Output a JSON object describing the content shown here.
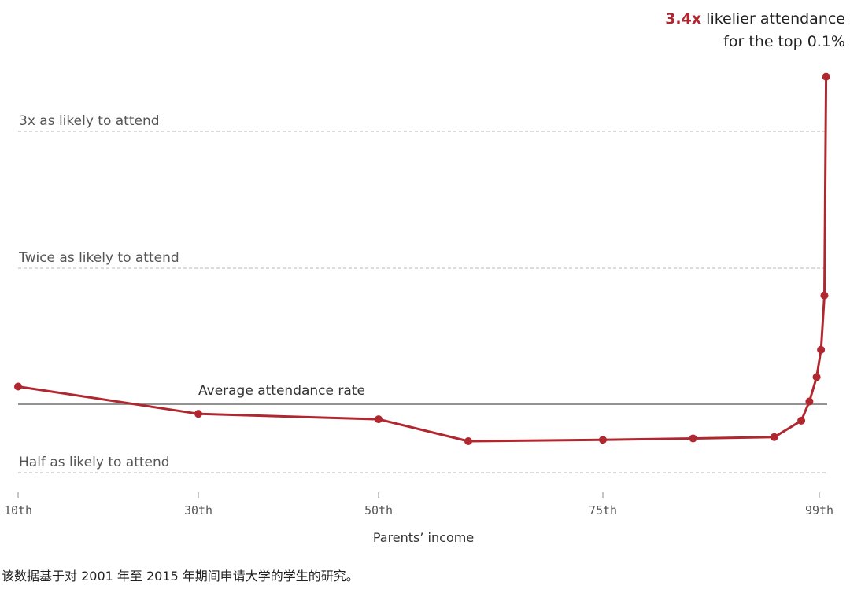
{
  "chart_data": {
    "type": "line",
    "xlabel": "Parents’ income",
    "x_ticks": [
      {
        "value": 10,
        "label": "10th"
      },
      {
        "value": 30,
        "label": "30th"
      },
      {
        "value": 50,
        "label": "50th"
      },
      {
        "value": 75,
        "label": "75th"
      },
      {
        "value": 99,
        "label": "99th"
      }
    ],
    "xlim": [
      10,
      100
    ],
    "ylim": [
      0.3,
      3.5
    ],
    "reference_lines": [
      {
        "value": 3.0,
        "label": "3x as likely to attend",
        "style": "dashed"
      },
      {
        "value": 2.0,
        "label": "Twice as likely to attend",
        "style": "dashed"
      },
      {
        "value": 0.5,
        "label": "Half as likely to attend",
        "style": "dashed"
      }
    ],
    "average_line": {
      "value": 1.0,
      "label": "Average attendance rate"
    },
    "series": [
      {
        "color": "#b0272f",
        "points": [
          {
            "x": 10,
            "y": 1.13
          },
          {
            "x": 30,
            "y": 0.93
          },
          {
            "x": 50,
            "y": 0.89
          },
          {
            "x": 60,
            "y": 0.73
          },
          {
            "x": 75,
            "y": 0.74
          },
          {
            "x": 85,
            "y": 0.75
          },
          {
            "x": 94,
            "y": 0.76
          },
          {
            "x": 97,
            "y": 0.88
          },
          {
            "x": 97.9,
            "y": 1.02
          },
          {
            "x": 98.7,
            "y": 1.2
          },
          {
            "x": 99.5,
            "y": 1.4
          },
          {
            "x": 100.5,
            "y": 1.8
          },
          {
            "x": 101,
            "y": 3.4
          }
        ]
      }
    ],
    "grid": false
  },
  "callout": {
    "highlight": "3.4x",
    "line1_rest": " likelier attendance",
    "line2": "for the top 0.1%"
  },
  "caption": "该数据基于对 2001 年至 2015 年期间申请大学的学生的研究。"
}
